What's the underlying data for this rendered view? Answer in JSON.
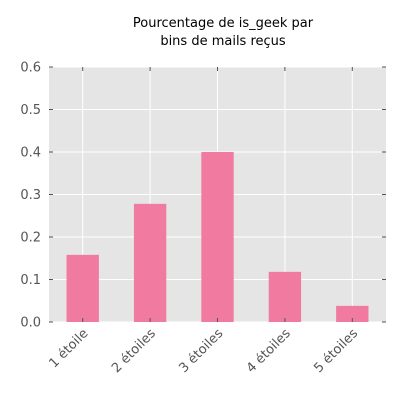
{
  "chart_data": {
    "type": "bar",
    "title_line1": "Pourcentage de is_geek par",
    "title_line2": "bins de mails reçus",
    "xlabel": "",
    "ylabel": "",
    "categories": [
      "1 étoile",
      "2 étoiles",
      "3 étoiles",
      "4 étoiles",
      "5 étoiles"
    ],
    "values": [
      0.158,
      0.278,
      0.4,
      0.118,
      0.038
    ],
    "ylim": [
      0.0,
      0.6
    ],
    "yticks": [
      0.0,
      0.1,
      0.2,
      0.3,
      0.4,
      0.5,
      0.6
    ],
    "ytick_labels": [
      "0.0",
      "0.1",
      "0.2",
      "0.3",
      "0.4",
      "0.5",
      "0.6"
    ],
    "grid": true,
    "legend": "none",
    "colors": {
      "bar": "#f07aa0",
      "plot_background": "#e5e5e5",
      "grid": "#ffffff",
      "tick_text": "#555555",
      "title_text": "#000000"
    }
  }
}
